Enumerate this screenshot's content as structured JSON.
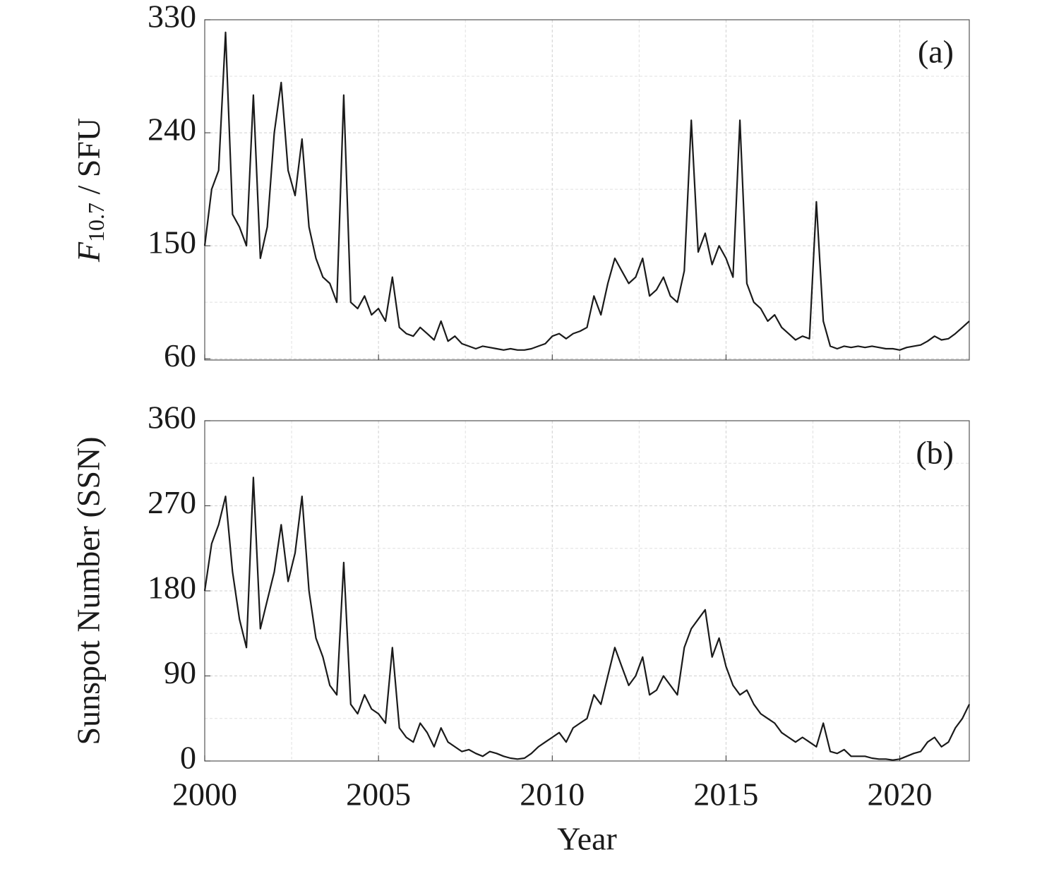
{
  "chart_data": [
    {
      "type": "line",
      "panel_label": "(a)",
      "ylabel": {
        "symbol": "F",
        "subscript": "10.7",
        "unit": " / SFU"
      },
      "xlim": [
        2000,
        2022
      ],
      "xticks": [
        2000,
        2005,
        2010,
        2015,
        2020
      ],
      "minor_xticks": [
        2002.5,
        2007.5,
        2012.5,
        2017.5
      ],
      "show_xtick_labels": false,
      "ylim": [
        59,
        330
      ],
      "yticks": [
        60,
        150,
        240,
        330
      ],
      "minor_yticks": [
        105,
        195,
        285
      ],
      "grid": true,
      "x": [
        2000,
        2000.2,
        2000.4,
        2000.6,
        2000.8,
        2001,
        2001.2,
        2001.4,
        2001.6,
        2001.8,
        2002,
        2002.2,
        2002.4,
        2002.6,
        2002.8,
        2003,
        2003.2,
        2003.4,
        2003.6,
        2003.8,
        2004,
        2004.2,
        2004.4,
        2004.6,
        2004.8,
        2005,
        2005.2,
        2005.4,
        2005.6,
        2005.8,
        2006,
        2006.2,
        2006.4,
        2006.6,
        2006.8,
        2007,
        2007.2,
        2007.4,
        2007.6,
        2007.8,
        2008,
        2008.2,
        2008.4,
        2008.6,
        2008.8,
        2009,
        2009.2,
        2009.4,
        2009.6,
        2009.8,
        2010,
        2010.2,
        2010.4,
        2010.6,
        2010.8,
        2011,
        2011.2,
        2011.4,
        2011.6,
        2011.8,
        2012,
        2012.2,
        2012.4,
        2012.6,
        2012.8,
        2013,
        2013.2,
        2013.4,
        2013.6,
        2013.8,
        2014,
        2014.2,
        2014.4,
        2014.6,
        2014.8,
        2015,
        2015.2,
        2015.4,
        2015.6,
        2015.8,
        2016,
        2016.2,
        2016.4,
        2016.6,
        2016.8,
        2017,
        2017.2,
        2017.4,
        2017.6,
        2017.8,
        2018,
        2018.2,
        2018.4,
        2018.6,
        2018.8,
        2019,
        2019.2,
        2019.4,
        2019.6,
        2019.8,
        2020,
        2020.2,
        2020.4,
        2020.6,
        2020.8,
        2021,
        2021.2,
        2021.4,
        2021.6,
        2021.8,
        2022
      ],
      "series": [
        {
          "color": "#1a1a1a",
          "values": [
            150,
            195,
            210,
            320,
            175,
            165,
            150,
            270,
            140,
            165,
            240,
            280,
            210,
            190,
            235,
            165,
            140,
            125,
            120,
            105,
            270,
            105,
            100,
            110,
            95,
            100,
            90,
            125,
            85,
            80,
            78,
            85,
            80,
            75,
            90,
            74,
            78,
            72,
            70,
            68,
            70,
            69,
            68,
            67,
            68,
            67,
            67,
            68,
            70,
            72,
            78,
            80,
            76,
            80,
            82,
            85,
            110,
            95,
            120,
            140,
            130,
            120,
            125,
            140,
            110,
            115,
            125,
            110,
            105,
            130,
            250,
            145,
            160,
            135,
            150,
            140,
            125,
            250,
            120,
            105,
            100,
            90,
            95,
            85,
            80,
            75,
            78,
            76,
            185,
            90,
            70,
            68,
            70,
            69,
            70,
            69,
            70,
            69,
            68,
            68,
            67,
            69,
            70,
            71,
            74,
            78,
            75,
            76,
            80,
            85,
            90
          ]
        }
      ]
    },
    {
      "type": "line",
      "panel_label": "(b)",
      "ylabel": "Sunspot Number (SSN)",
      "xlabel": "Year",
      "xlim": [
        2000,
        2022
      ],
      "xticks": [
        2000,
        2005,
        2010,
        2015,
        2020
      ],
      "minor_xticks": [
        2002.5,
        2007.5,
        2012.5,
        2017.5
      ],
      "show_xtick_labels": true,
      "ylim": [
        0,
        360
      ],
      "yticks": [
        0,
        90,
        180,
        270,
        360
      ],
      "minor_yticks": [
        45,
        135,
        225,
        315
      ],
      "grid": true,
      "x": [
        2000,
        2000.2,
        2000.4,
        2000.6,
        2000.8,
        2001,
        2001.2,
        2001.4,
        2001.6,
        2001.8,
        2002,
        2002.2,
        2002.4,
        2002.6,
        2002.8,
        2003,
        2003.2,
        2003.4,
        2003.6,
        2003.8,
        2004,
        2004.2,
        2004.4,
        2004.6,
        2004.8,
        2005,
        2005.2,
        2005.4,
        2005.6,
        2005.8,
        2006,
        2006.2,
        2006.4,
        2006.6,
        2006.8,
        2007,
        2007.2,
        2007.4,
        2007.6,
        2007.8,
        2008,
        2008.2,
        2008.4,
        2008.6,
        2008.8,
        2009,
        2009.2,
        2009.4,
        2009.6,
        2009.8,
        2010,
        2010.2,
        2010.4,
        2010.6,
        2010.8,
        2011,
        2011.2,
        2011.4,
        2011.6,
        2011.8,
        2012,
        2012.2,
        2012.4,
        2012.6,
        2012.8,
        2013,
        2013.2,
        2013.4,
        2013.6,
        2013.8,
        2014,
        2014.2,
        2014.4,
        2014.6,
        2014.8,
        2015,
        2015.2,
        2015.4,
        2015.6,
        2015.8,
        2016,
        2016.2,
        2016.4,
        2016.6,
        2016.8,
        2017,
        2017.2,
        2017.4,
        2017.6,
        2017.8,
        2018,
        2018.2,
        2018.4,
        2018.6,
        2018.8,
        2019,
        2019.2,
        2019.4,
        2019.6,
        2019.8,
        2020,
        2020.2,
        2020.4,
        2020.6,
        2020.8,
        2021,
        2021.2,
        2021.4,
        2021.6,
        2021.8,
        2022
      ],
      "series": [
        {
          "color": "#1a1a1a",
          "values": [
            180,
            230,
            250,
            280,
            200,
            150,
            120,
            300,
            140,
            170,
            200,
            250,
            190,
            220,
            280,
            180,
            130,
            110,
            80,
            70,
            210,
            60,
            50,
            70,
            55,
            50,
            40,
            120,
            35,
            25,
            20,
            40,
            30,
            15,
            35,
            20,
            15,
            10,
            12,
            8,
            5,
            10,
            8,
            5,
            3,
            2,
            3,
            8,
            15,
            20,
            25,
            30,
            20,
            35,
            40,
            45,
            70,
            60,
            90,
            120,
            100,
            80,
            90,
            110,
            70,
            75,
            90,
            80,
            70,
            120,
            140,
            150,
            160,
            110,
            130,
            100,
            80,
            70,
            75,
            60,
            50,
            45,
            40,
            30,
            25,
            20,
            25,
            20,
            15,
            40,
            10,
            8,
            12,
            5,
            5,
            5,
            3,
            2,
            2,
            1,
            2,
            5,
            8,
            10,
            20,
            25,
            15,
            20,
            35,
            45,
            60
          ]
        }
      ]
    }
  ]
}
